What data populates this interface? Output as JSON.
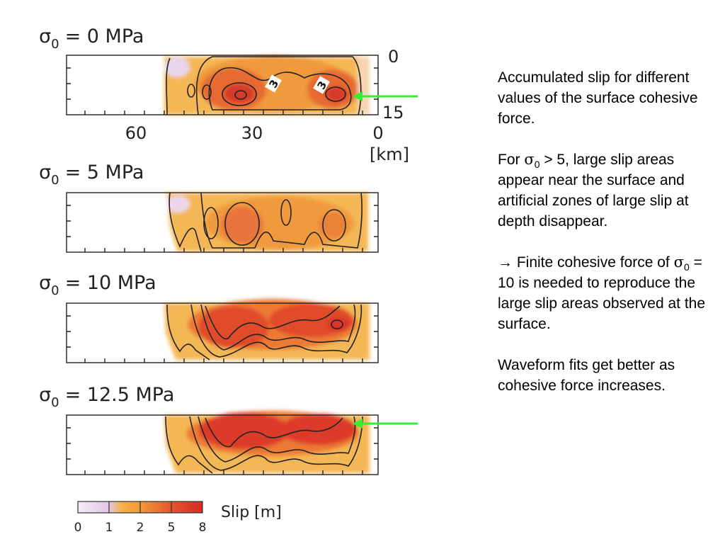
{
  "figure": {
    "panels": [
      {
        "sigma_sym": "σ",
        "sigma_sub": "0",
        "value_text": "= 0 MPa"
      },
      {
        "sigma_sym": "σ",
        "sigma_sub": "0",
        "value_text": "= 5 MPa"
      },
      {
        "sigma_sym": "σ",
        "sigma_sub": "0",
        "value_text": "= 10 MPa"
      },
      {
        "sigma_sym": "σ",
        "sigma_sub": "0",
        "value_text": "= 12.5 MPa"
      }
    ],
    "x_ticks": [
      "60",
      "30",
      "0"
    ],
    "x_unit": "[km]",
    "depth_ticks": [
      "0",
      "15"
    ],
    "contour_labels": [
      "3",
      "3"
    ],
    "colorbar": {
      "title": "Slip [m]",
      "ticks": [
        "0",
        "1",
        "2",
        "5",
        "8"
      ],
      "colors": [
        "#e8d4ea",
        "#f6b24a",
        "#f08a35",
        "#e45a2e",
        "#d8312a"
      ]
    },
    "arrow_color": "#33ee33"
  },
  "notes": {
    "p1": "Accumulated slip for different values of the surface cohesive force.",
    "p2_a": "For ",
    "p2_sym": "σ",
    "p2_sub": "0",
    "p2_b": " > 5, large slip areas appear near the surface and artificial zones of large slip at depth disappear.",
    "p3_arrow": "→",
    "p3_a": " Finite cohesive force of ",
    "p3_sym": "σ",
    "p3_sub": "0",
    "p3_b": " = 10 is needed to reproduce the large slip areas observed at the surface.",
    "p4": "Waveform fits get better as cohesive force increases."
  }
}
